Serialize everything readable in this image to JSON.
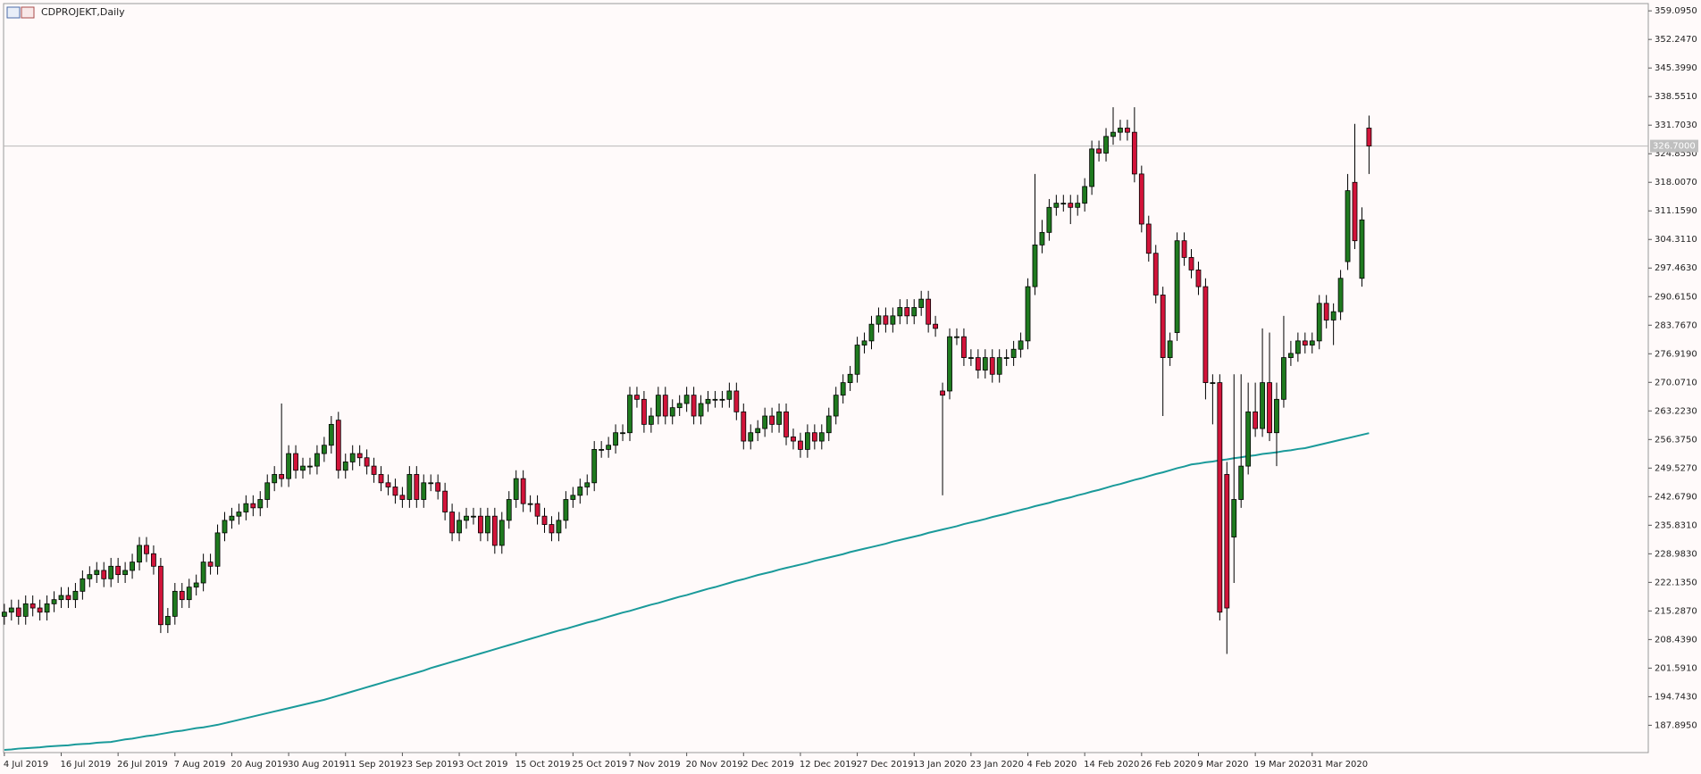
{
  "chart_data": {
    "type": "candlestick",
    "title": "CDPROJEKT,Daily",
    "categories": [
      "4 Jul 2019",
      null,
      null,
      null,
      null,
      null,
      null,
      null,
      "16 Jul 2019",
      null,
      null,
      null,
      null,
      null,
      null,
      null,
      "26 Jul 2019",
      null,
      null,
      null,
      null,
      null,
      null,
      null,
      "7 Aug 2019",
      null,
      null,
      null,
      null,
      null,
      null,
      null,
      "20 Aug 2019",
      null,
      null,
      null,
      null,
      null,
      null,
      null,
      "30 Aug 2019",
      null,
      null,
      null,
      null,
      null,
      null,
      null,
      "11 Sep 2019",
      null,
      null,
      null,
      null,
      null,
      null,
      null,
      "23 Sep 2019",
      null,
      null,
      null,
      null,
      null,
      null,
      null,
      "3 Oct 2019",
      null,
      null,
      null,
      null,
      null,
      null,
      null,
      "15 Oct 2019",
      null,
      null,
      null,
      null,
      null,
      null,
      null,
      "25 Oct 2019",
      null,
      null,
      null,
      null,
      null,
      null,
      null,
      "7 Nov 2019",
      null,
      null,
      null,
      null,
      null,
      null,
      null,
      "20 Nov 2019",
      null,
      null,
      null,
      null,
      null,
      null,
      null,
      "2 Dec 2019",
      null,
      null,
      null,
      null,
      null,
      null,
      null,
      "12 Dec 2019",
      null,
      null,
      null,
      null,
      null,
      null,
      null,
      "27 Dec 2019",
      null,
      null,
      null,
      null,
      null,
      null,
      null,
      "13 Jan 2020",
      null,
      null,
      null,
      null,
      null,
      null,
      null,
      "23 Jan 2020",
      null,
      null,
      null,
      null,
      null,
      null,
      null,
      "4 Feb 2020",
      null,
      null,
      null,
      null,
      null,
      null,
      null,
      "14 Feb 2020",
      null,
      null,
      null,
      null,
      null,
      null,
      null,
      "26 Feb 2020",
      null,
      null,
      null,
      null,
      null,
      null,
      null,
      "9 Mar 2020",
      null,
      null,
      null,
      null,
      null,
      null,
      null,
      "19 Mar 2020",
      null,
      null,
      null,
      null,
      null,
      null,
      null,
      "31 Mar 2020",
      null,
      null,
      null,
      null,
      null,
      null,
      null,
      null
    ],
    "open": [
      214,
      215,
      216,
      214,
      217,
      216,
      215,
      217,
      218,
      219,
      218,
      220,
      223,
      224,
      225,
      223,
      226,
      224,
      225,
      227,
      231,
      229,
      226,
      212,
      214,
      220,
      218,
      221,
      222,
      227,
      226,
      234,
      237,
      238,
      239,
      241,
      240,
      242,
      246,
      248,
      247,
      253,
      249,
      250,
      250,
      253,
      255,
      261,
      249,
      251,
      253,
      252,
      250,
      248,
      246,
      245,
      243,
      242,
      248,
      242,
      246,
      246,
      244,
      239,
      234,
      237,
      238,
      238,
      234,
      238,
      231,
      237,
      242,
      247,
      241,
      241,
      238,
      236,
      234,
      237,
      242,
      243,
      245,
      246,
      254,
      254,
      255,
      258,
      258,
      267,
      266,
      260,
      262,
      267,
      262,
      264,
      265,
      267,
      262,
      265,
      266,
      266,
      266,
      268,
      263,
      256,
      258,
      259,
      262,
      260,
      263,
      257,
      256,
      254,
      258,
      256,
      258,
      262,
      267,
      270,
      272,
      279,
      280,
      284,
      286,
      284,
      286,
      288,
      286,
      288,
      290,
      284,
      268,
      268,
      281,
      281,
      276,
      276,
      273,
      276,
      272,
      276,
      276,
      278,
      280,
      293,
      303,
      306,
      312,
      313,
      313,
      312,
      313,
      317,
      326,
      325,
      329,
      330,
      331,
      330,
      320,
      308,
      301,
      291,
      276,
      282,
      304,
      300,
      297,
      293,
      270,
      270,
      248,
      233,
      242,
      250,
      263,
      259,
      270,
      258,
      266,
      276,
      277,
      280,
      279,
      280,
      289,
      285,
      287,
      299,
      318,
      295,
      331
    ],
    "high": [
      217,
      218,
      218,
      219,
      219,
      218,
      219,
      220,
      221,
      221,
      222,
      225,
      226,
      227,
      227,
      228,
      228,
      227,
      229,
      233,
      233,
      231,
      228,
      216,
      222,
      222,
      223,
      224,
      229,
      229,
      236,
      239,
      240,
      241,
      243,
      243,
      244,
      248,
      250,
      265,
      255,
      255,
      252,
      252,
      255,
      257,
      262,
      263,
      253,
      255,
      255,
      254,
      252,
      250,
      248,
      247,
      245,
      250,
      250,
      248,
      248,
      248,
      246,
      241,
      239,
      240,
      240,
      240,
      240,
      240,
      239,
      244,
      249,
      249,
      243,
      243,
      240,
      238,
      239,
      244,
      245,
      247,
      248,
      256,
      256,
      257,
      260,
      260,
      269,
      269,
      268,
      264,
      269,
      269,
      266,
      267,
      269,
      269,
      267,
      268,
      268,
      268,
      270,
      270,
      265,
      260,
      261,
      264,
      264,
      265,
      265,
      259,
      258,
      260,
      260,
      260,
      264,
      269,
      272,
      274,
      281,
      282,
      286,
      288,
      288,
      288,
      290,
      290,
      290,
      292,
      292,
      286,
      270,
      283,
      283,
      283,
      278,
      278,
      278,
      278,
      278,
      278,
      280,
      282,
      295,
      320,
      309,
      314,
      315,
      315,
      315,
      315,
      319,
      328,
      328,
      331,
      336,
      333,
      333,
      336,
      322,
      310,
      303,
      293,
      282,
      306,
      306,
      302,
      299,
      295,
      272,
      272,
      251,
      272,
      272,
      270,
      270,
      283,
      282,
      270,
      286,
      280,
      282,
      282,
      282,
      291,
      291,
      289,
      297,
      320,
      332,
      312,
      334
    ],
    "low": [
      212,
      213,
      212,
      212,
      214,
      213,
      213,
      215,
      216,
      216,
      216,
      218,
      221,
      222,
      221,
      221,
      222,
      222,
      223,
      225,
      227,
      224,
      210,
      210,
      212,
      216,
      216,
      219,
      220,
      224,
      224,
      232,
      235,
      236,
      237,
      238,
      238,
      240,
      244,
      245,
      245,
      247,
      247,
      248,
      248,
      251,
      253,
      247,
      247,
      249,
      250,
      248,
      246,
      244,
      243,
      241,
      240,
      240,
      240,
      240,
      244,
      242,
      237,
      232,
      232,
      235,
      236,
      232,
      232,
      229,
      229,
      235,
      240,
      239,
      239,
      236,
      234,
      232,
      232,
      235,
      240,
      241,
      243,
      244,
      252,
      252,
      253,
      256,
      256,
      264,
      258,
      258,
      260,
      260,
      260,
      262,
      263,
      260,
      260,
      263,
      264,
      264,
      264,
      261,
      254,
      254,
      256,
      257,
      258,
      258,
      255,
      254,
      252,
      252,
      254,
      254,
      256,
      260,
      265,
      268,
      270,
      277,
      278,
      282,
      282,
      282,
      284,
      284,
      284,
      286,
      282,
      281,
      243,
      266,
      279,
      274,
      274,
      271,
      271,
      270,
      270,
      274,
      274,
      276,
      278,
      291,
      301,
      304,
      310,
      311,
      308,
      310,
      311,
      315,
      323,
      323,
      327,
      328,
      328,
      318,
      306,
      299,
      289,
      262,
      274,
      280,
      298,
      295,
      291,
      266,
      260,
      213,
      205,
      222,
      240,
      248,
      257,
      257,
      256,
      250,
      264,
      274,
      275,
      277,
      277,
      278,
      283,
      279,
      285,
      297,
      302,
      293,
      320
    ],
    "close": [
      215,
      216,
      214,
      217,
      216,
      215,
      217,
      218,
      219,
      218,
      220,
      223,
      224,
      225,
      223,
      226,
      224,
      225,
      227,
      231,
      229,
      226,
      212,
      214,
      220,
      218,
      221,
      222,
      227,
      226,
      234,
      237,
      238,
      239,
      241,
      240,
      242,
      246,
      248,
      247,
      253,
      249,
      250,
      250,
      253,
      255,
      260,
      249,
      251,
      253,
      252,
      250,
      248,
      246,
      245,
      243,
      242,
      248,
      242,
      246,
      246,
      244,
      239,
      234,
      237,
      238,
      238,
      234,
      238,
      231,
      237,
      242,
      247,
      241,
      241,
      238,
      236,
      234,
      237,
      242,
      243,
      245,
      246,
      254,
      254,
      255,
      258,
      258,
      267,
      266,
      260,
      262,
      267,
      262,
      264,
      265,
      267,
      262,
      265,
      266,
      266,
      266,
      268,
      263,
      256,
      258,
      259,
      262,
      260,
      263,
      257,
      256,
      254,
      258,
      256,
      258,
      262,
      267,
      270,
      272,
      279,
      280,
      284,
      286,
      284,
      286,
      288,
      286,
      288,
      290,
      284,
      283,
      267,
      281,
      281,
      276,
      276,
      273,
      276,
      272,
      276,
      276,
      278,
      280,
      293,
      303,
      306,
      312,
      313,
      313,
      312,
      313,
      317,
      326,
      325,
      329,
      330,
      331,
      330,
      320,
      308,
      301,
      291,
      276,
      280,
      304,
      300,
      297,
      293,
      270,
      270,
      215,
      216,
      242,
      250,
      263,
      259,
      270,
      258,
      266,
      276,
      277,
      280,
      279,
      280,
      289,
      285,
      287,
      295,
      316,
      304,
      309,
      326.7
    ],
    "up_color": "#1f7a1f",
    "down_color": "#d2143a",
    "wick_color": "#000000",
    "ma": {
      "type": "line",
      "color": "#1a9a9a",
      "values": [
        182.0,
        182.1,
        182.3,
        182.4,
        182.5,
        182.6,
        182.8,
        182.9,
        183.0,
        183.1,
        183.3,
        183.4,
        183.5,
        183.7,
        183.8,
        183.9,
        184.2,
        184.5,
        184.7,
        185.0,
        185.3,
        185.5,
        185.8,
        186.1,
        186.4,
        186.6,
        186.9,
        187.2,
        187.4,
        187.7,
        188.0,
        188.4,
        188.8,
        189.2,
        189.6,
        190.0,
        190.4,
        190.8,
        191.2,
        191.6,
        192.0,
        192.4,
        192.8,
        193.2,
        193.6,
        194.0,
        194.5,
        195.0,
        195.5,
        196.0,
        196.5,
        197.0,
        197.5,
        198.0,
        198.5,
        199.0,
        199.5,
        200.0,
        200.5,
        201.0,
        201.6,
        202.1,
        202.6,
        203.1,
        203.6,
        204.1,
        204.6,
        205.1,
        205.6,
        206.1,
        206.6,
        207.1,
        207.6,
        208.1,
        208.6,
        209.1,
        209.6,
        210.1,
        210.6,
        211.0,
        211.5,
        212.0,
        212.5,
        212.9,
        213.4,
        213.9,
        214.4,
        214.9,
        215.3,
        215.8,
        216.3,
        216.8,
        217.2,
        217.7,
        218.2,
        218.7,
        219.1,
        219.6,
        220.1,
        220.6,
        221.0,
        221.5,
        222.0,
        222.5,
        222.9,
        223.4,
        223.9,
        224.3,
        224.7,
        225.2,
        225.6,
        226.0,
        226.4,
        226.8,
        227.3,
        227.7,
        228.1,
        228.5,
        228.9,
        229.4,
        229.8,
        230.2,
        230.6,
        231.0,
        231.4,
        231.9,
        232.3,
        232.7,
        233.1,
        233.5,
        234.0,
        234.4,
        234.8,
        235.2,
        235.6,
        236.1,
        236.5,
        236.9,
        237.3,
        237.8,
        238.2,
        238.6,
        239.1,
        239.5,
        239.9,
        240.4,
        240.8,
        241.2,
        241.7,
        242.1,
        242.5,
        243.0,
        243.4,
        243.9,
        244.3,
        244.8,
        245.3,
        245.7,
        246.2,
        246.7,
        247.1,
        247.6,
        248.1,
        248.5,
        249.0,
        249.5,
        249.9,
        250.4,
        250.6,
        250.9,
        251.1,
        251.4,
        251.6,
        251.9,
        252.1,
        252.4,
        252.6,
        252.9,
        253.1,
        253.3,
        253.6,
        253.8,
        254.1,
        254.3,
        254.7,
        255.1,
        255.5,
        255.9,
        256.3,
        256.7,
        257.1,
        257.5,
        257.9
      ]
    },
    "price_line": {
      "value": 326.7,
      "label": "326.7000"
    },
    "ylim": [
      181.35,
      360.84
    ],
    "yticks": [
      {
        "value": 187.895,
        "label": "187.8950"
      },
      {
        "value": 194.743,
        "label": "194.7430"
      },
      {
        "value": 201.591,
        "label": "201.5910"
      },
      {
        "value": 208.439,
        "label": "208.4390"
      },
      {
        "value": 215.287,
        "label": "215.2870"
      },
      {
        "value": 222.135,
        "label": "222.1350"
      },
      {
        "value": 228.983,
        "label": "228.9830"
      },
      {
        "value": 235.831,
        "label": "235.8310"
      },
      {
        "value": 242.679,
        "label": "242.6790"
      },
      {
        "value": 249.527,
        "label": "249.5270"
      },
      {
        "value": 256.375,
        "label": "256.3750"
      },
      {
        "value": 263.223,
        "label": "263.2230"
      },
      {
        "value": 270.071,
        "label": "270.0710"
      },
      {
        "value": 276.919,
        "label": "276.9190"
      },
      {
        "value": 283.767,
        "label": "283.7670"
      },
      {
        "value": 290.615,
        "label": "290.6150"
      },
      {
        "value": 297.463,
        "label": "297.4630"
      },
      {
        "value": 304.311,
        "label": "304.3110"
      },
      {
        "value": 311.159,
        "label": "311.1590"
      },
      {
        "value": 318.007,
        "label": "318.0070"
      },
      {
        "value": 324.855,
        "label": "324.8550"
      },
      {
        "value": 331.703,
        "label": "331.7030"
      },
      {
        "value": 338.551,
        "label": "338.5510"
      },
      {
        "value": 345.399,
        "label": "345.3990"
      },
      {
        "value": 352.247,
        "label": "352.2470"
      },
      {
        "value": 359.095,
        "label": "359.0950"
      }
    ],
    "grid": false
  }
}
